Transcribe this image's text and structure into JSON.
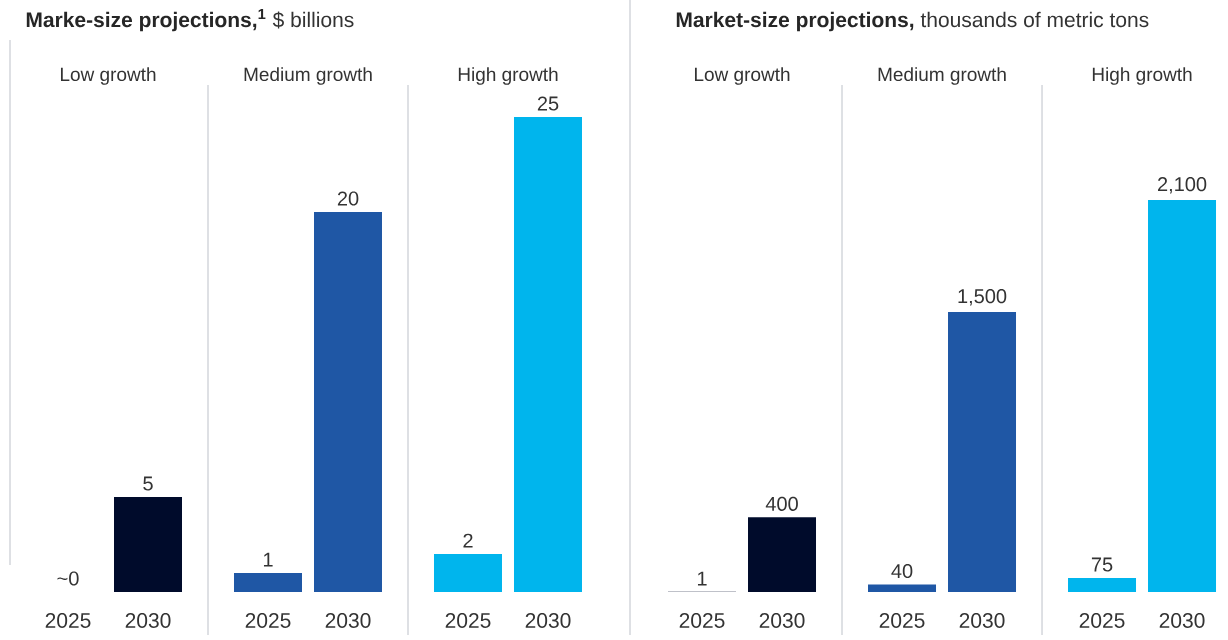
{
  "chart_data": [
    {
      "type": "bar",
      "title": "Marke-size projections,$^{1}$",
      "subtitle": "$ billions",
      "categories": [
        "2025",
        "2030",
        "2025",
        "2030",
        "2025",
        "2030"
      ],
      "values": [
        0,
        5,
        1,
        20,
        2,
        25
      ],
      "value_labels": [
        "~0",
        "5",
        "1",
        "20",
        "2",
        "25"
      ],
      "colors": [
        "#000b2b",
        "#000b2b",
        "#1f57a5",
        "#1f57a5",
        "#00b5ed",
        "#00b5ed"
      ],
      "annotations": [
        "Low growth",
        "Medium growth",
        "High growth"
      ],
      "ylim": [
        0,
        25
      ],
      "tick_labels": "x"
    },
    {
      "type": "bar",
      "title": "Market-size projections,",
      "subtitle": "thousands of metric tons",
      "categories": [
        "2025",
        "2030",
        "2025",
        "2030",
        "2025",
        "2030"
      ],
      "values": [
        1,
        400,
        40,
        1500,
        75,
        2100
      ],
      "value_labels": [
        "1",
        "400",
        "40",
        "1,500",
        "75",
        "2,100"
      ],
      "colors": [
        "#000b2b",
        "#000b2b",
        "#1f57a5",
        "#1f57a5",
        "#00b5ed",
        "#00b5ed"
      ],
      "annotations": [
        "Low growth",
        "Medium growth",
        "High growth"
      ],
      "ylim": [
        0,
        2100
      ],
      "tick_labels": "x"
    }
  ]
}
